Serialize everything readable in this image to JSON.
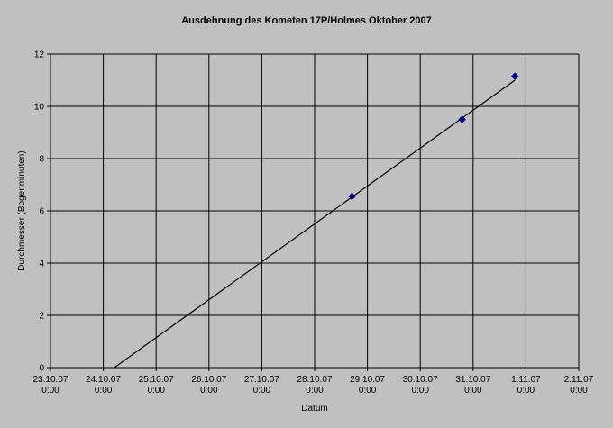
{
  "chart_data": {
    "type": "scatter",
    "title": "Ausdehnung des Kometen 17P/Holmes Oktober 2007",
    "xlabel": "Datum",
    "ylabel": "Durchmesser (Bogenminuten)",
    "x_ticks": [
      {
        "date": "23.10.07",
        "time": "0:00"
      },
      {
        "date": "24.10.07",
        "time": "0:00"
      },
      {
        "date": "25.10.07",
        "time": "0:00"
      },
      {
        "date": "26.10.07",
        "time": "0:00"
      },
      {
        "date": "27.10.07",
        "time": "0:00"
      },
      {
        "date": "28.10.07",
        "time": "0:00"
      },
      {
        "date": "29.10.07",
        "time": "0:00"
      },
      {
        "date": "30.10.07",
        "time": "0:00"
      },
      {
        "date": "31.10.07",
        "time": "0:00"
      },
      {
        "date": "1.11.07",
        "time": "0:00"
      },
      {
        "date": "2.11.07",
        "time": "0:00"
      }
    ],
    "xlim": [
      "2007-10-23 00:00",
      "2007-11-02 00:00"
    ],
    "ylim": [
      0,
      12
    ],
    "y_ticks": [
      0,
      2,
      4,
      6,
      8,
      10,
      12
    ],
    "grid": true,
    "legend": "none",
    "series": [
      {
        "points": [
          {
            "x": "2007-10-28 17:00",
            "y": 6.55
          },
          {
            "x": "2007-10-30 19:00",
            "y": 9.5
          },
          {
            "x": "2007-10-31 19:00",
            "y": 11.15
          }
        ],
        "marker": "diamond",
        "color": "#000080"
      }
    ],
    "trendline": {
      "type": "linear",
      "from": {
        "x": "2007-10-24 05:00",
        "y": 0
      },
      "to": {
        "x": "2007-10-31 19:00",
        "y": 11.0
      },
      "color": "#000000"
    },
    "colors": {
      "background": "#c0c0c0",
      "plot_area": "#c0c0c0",
      "grid": "#000000"
    }
  }
}
